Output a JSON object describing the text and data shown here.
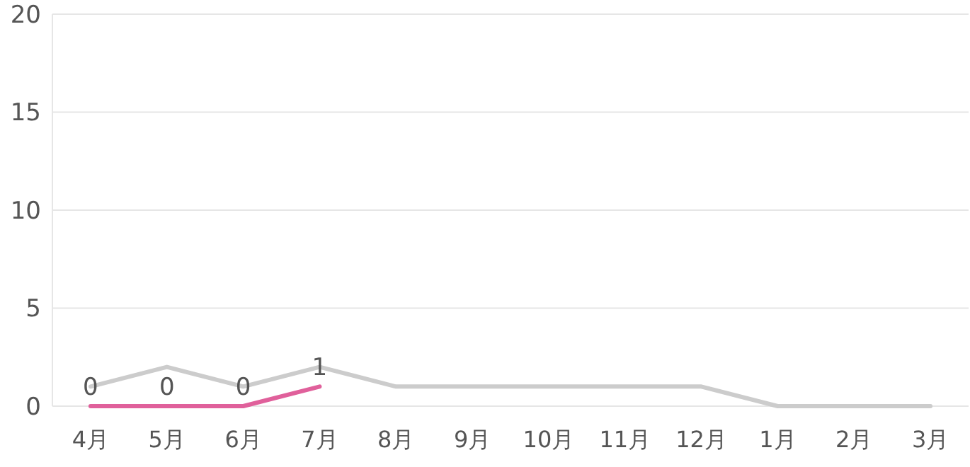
{
  "chart_data": {
    "type": "line",
    "categories": [
      "4月",
      "5月",
      "6月",
      "7月",
      "8月",
      "9月",
      "10月",
      "11月",
      "12月",
      "1月",
      "2月",
      "3月"
    ],
    "series": [
      {
        "color": "#cccccc",
        "values": [
          1,
          2,
          1,
          2,
          1,
          1,
          1,
          1,
          1,
          0,
          0,
          0
        ]
      },
      {
        "color": "#e0609b",
        "values": [
          0,
          0,
          0,
          1,
          null,
          null,
          null,
          null,
          null,
          null,
          null,
          null
        ],
        "value_labels": [
          "0",
          "0",
          "0",
          "1",
          null,
          null,
          null,
          null,
          null,
          null,
          null,
          null
        ]
      }
    ],
    "ylim": [
      0,
      20
    ],
    "yticks": [
      0,
      5,
      10,
      15,
      20
    ],
    "grid": "y",
    "marker": "none"
  }
}
